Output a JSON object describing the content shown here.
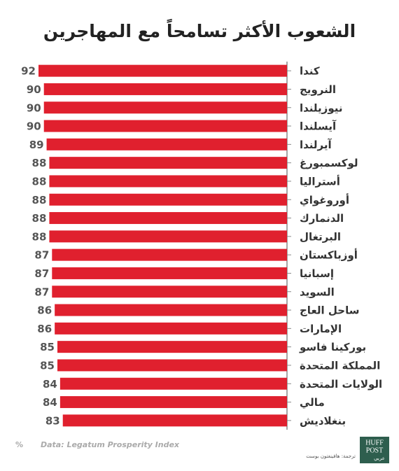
{
  "chart_data": {
    "type": "barh",
    "title": "الشعوب الأكثر تسامحاً مع المهاجرين",
    "categories": [
      "كندا",
      "النرويج",
      "نيوزيلندا",
      "آيسلندا",
      "آيرلندا",
      "لوكسمبورغ",
      "أستراليا",
      "أوروغواي",
      "الدنمارك",
      "البرتغال",
      "أوزباكستان",
      "إسبانيا",
      "السويد",
      "ساحل العاج",
      "الإمارات",
      "بوركينا فاسو",
      "المملكة المتحدة",
      "الولايات المتحدة",
      "مالي",
      "بنغلاديش"
    ],
    "values": [
      92,
      90,
      90,
      90,
      89,
      88,
      88,
      88,
      88,
      88,
      87,
      87,
      87,
      86,
      86,
      85,
      85,
      84,
      84,
      83
    ],
    "color": "#e0202e"
  },
  "footer": {
    "unit": "%",
    "source": "Data: Legatum Prosperity Index",
    "credit": "ترجمة: هافينغتون بوست"
  },
  "logo": {
    "line1": "HUFF",
    "line2": "POST",
    "line3": "عربي"
  }
}
